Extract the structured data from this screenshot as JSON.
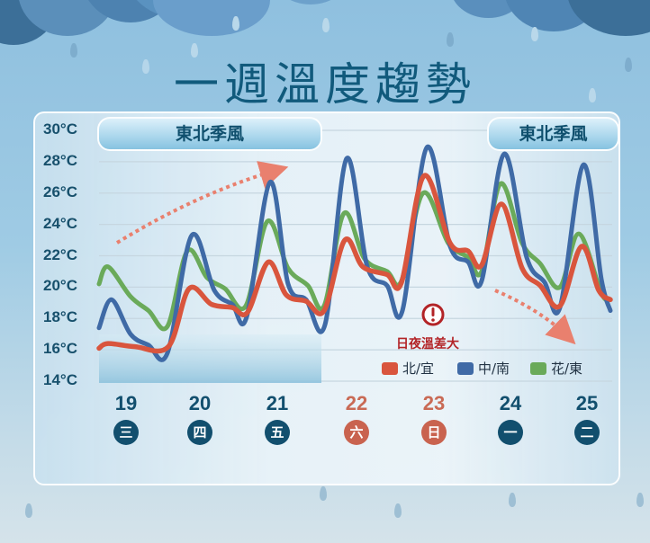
{
  "title": "一週溫度趨勢",
  "banners": [
    {
      "label": "東北季風",
      "position": "left"
    },
    {
      "label": "東北季風",
      "position": "right"
    }
  ],
  "annotation": {
    "icon": "exclamation-icon",
    "label": "日夜溫差大"
  },
  "legend": [
    {
      "label": "北/宜",
      "color": "#d9553d"
    },
    {
      "label": "中/南",
      "color": "#3f6aa6"
    },
    {
      "label": "花/東",
      "color": "#6aaa5a"
    }
  ],
  "days": [
    {
      "date": "19",
      "weekday": "三",
      "weekend": false
    },
    {
      "date": "20",
      "weekday": "四",
      "weekend": false
    },
    {
      "date": "21",
      "weekday": "五",
      "weekend": false
    },
    {
      "date": "22",
      "weekday": "六",
      "weekend": true
    },
    {
      "date": "23",
      "weekday": "日",
      "weekend": true
    },
    {
      "date": "24",
      "weekday": "一",
      "weekend": false
    },
    {
      "date": "25",
      "weekday": "二",
      "weekend": false
    }
  ],
  "colors": {
    "weekday_text": "#124f6e",
    "weekday_badge": "#124f6e",
    "weekend_text": "#c96a55",
    "weekend_badge": "#c9634f",
    "trend_arrow": "#e9806e"
  },
  "chart_data": {
    "type": "line",
    "title": "一週溫度趨勢",
    "xlabel": "",
    "ylabel": "",
    "yticks": [
      "30°C",
      "28°C",
      "26°C",
      "24°C",
      "22°C",
      "20°C",
      "18°C",
      "16°C",
      "14°C"
    ],
    "ylim": [
      14,
      30
    ],
    "categories": [
      "19(三)",
      "20(四)",
      "21(五)",
      "22(六)",
      "23(日)",
      "24(一)",
      "25(二)"
    ],
    "grid": true,
    "legend_position": "bottom-right",
    "annotations": [
      "東北季風 (19–21)",
      "東北季風 (24–25)",
      "日夜溫差大",
      "warming trend arrow 19→21",
      "cooling trend arrow 24→25"
    ],
    "series": [
      {
        "name": "北/宜",
        "color": "#d9553d",
        "points": [
          [
            110,
            16.1
          ],
          [
            120,
            16.4
          ],
          [
            150,
            16.2
          ],
          [
            187,
            16.2
          ],
          [
            210,
            19.9
          ],
          [
            235,
            18.9
          ],
          [
            258,
            18.7
          ],
          [
            275,
            18.4
          ],
          [
            298,
            21.6
          ],
          [
            318,
            19.5
          ],
          [
            340,
            19.1
          ],
          [
            360,
            18.5
          ],
          [
            383,
            23.0
          ],
          [
            403,
            21.3
          ],
          [
            430,
            20.8
          ],
          [
            446,
            20.3
          ],
          [
            471,
            27.1
          ],
          [
            500,
            22.8
          ],
          [
            520,
            22.3
          ],
          [
            535,
            21.4
          ],
          [
            557,
            25.3
          ],
          [
            580,
            21.2
          ],
          [
            600,
            20.1
          ],
          [
            622,
            18.8
          ],
          [
            646,
            22.6
          ],
          [
            665,
            19.8
          ],
          [
            678,
            19.2
          ]
        ],
        "daily_high": [
          16.4,
          19.9,
          21.6,
          23.0,
          27.1,
          25.3,
          22.6
        ],
        "daily_low": [
          16.1,
          16.2,
          18.4,
          18.5,
          20.3,
          21.4,
          18.8
        ]
      },
      {
        "name": "中/南",
        "color": "#3f6aa6",
        "points": [
          [
            110,
            17.4
          ],
          [
            124,
            19.2
          ],
          [
            145,
            17.0
          ],
          [
            165,
            16.3
          ],
          [
            186,
            15.8
          ],
          [
            213,
            23.3
          ],
          [
            238,
            19.8
          ],
          [
            258,
            18.9
          ],
          [
            274,
            18.1
          ],
          [
            300,
            26.7
          ],
          [
            320,
            20.2
          ],
          [
            340,
            19.2
          ],
          [
            361,
            17.6
          ],
          [
            385,
            28.2
          ],
          [
            408,
            21.3
          ],
          [
            430,
            20.1
          ],
          [
            447,
            18.5
          ],
          [
            474,
            28.9
          ],
          [
            500,
            22.6
          ],
          [
            520,
            21.6
          ],
          [
            535,
            20.4
          ],
          [
            560,
            28.5
          ],
          [
            585,
            21.9
          ],
          [
            605,
            20.3
          ],
          [
            622,
            18.7
          ],
          [
            648,
            27.8
          ],
          [
            668,
            20.5
          ],
          [
            678,
            18.5
          ]
        ],
        "daily_high": [
          19.2,
          23.3,
          26.7,
          28.2,
          28.9,
          28.5,
          27.8
        ],
        "daily_low": [
          17.4,
          15.8,
          18.1,
          17.6,
          18.5,
          20.4,
          18.7
        ]
      },
      {
        "name": "花/東",
        "color": "#6aaa5a",
        "points": [
          [
            110,
            20.2
          ],
          [
            120,
            21.3
          ],
          [
            145,
            19.4
          ],
          [
            165,
            18.5
          ],
          [
            186,
            17.5
          ],
          [
            208,
            22.3
          ],
          [
            230,
            20.6
          ],
          [
            250,
            19.9
          ],
          [
            273,
            18.8
          ],
          [
            297,
            24.2
          ],
          [
            320,
            21.2
          ],
          [
            342,
            20.1
          ],
          [
            360,
            18.8
          ],
          [
            382,
            24.7
          ],
          [
            405,
            21.8
          ],
          [
            430,
            21.0
          ],
          [
            446,
            20.4
          ],
          [
            470,
            26.0
          ],
          [
            498,
            22.8
          ],
          [
            520,
            21.9
          ],
          [
            535,
            21.0
          ],
          [
            556,
            26.6
          ],
          [
            580,
            22.8
          ],
          [
            600,
            21.5
          ],
          [
            622,
            20.0
          ],
          [
            643,
            23.4
          ],
          [
            668,
            19.6
          ],
          [
            678,
            19.2
          ]
        ],
        "daily_high": [
          21.3,
          22.3,
          24.2,
          24.7,
          26.0,
          26.6,
          23.4
        ],
        "daily_low": [
          20.2,
          17.5,
          18.8,
          18.8,
          20.4,
          21.0,
          20.0
        ]
      }
    ]
  }
}
